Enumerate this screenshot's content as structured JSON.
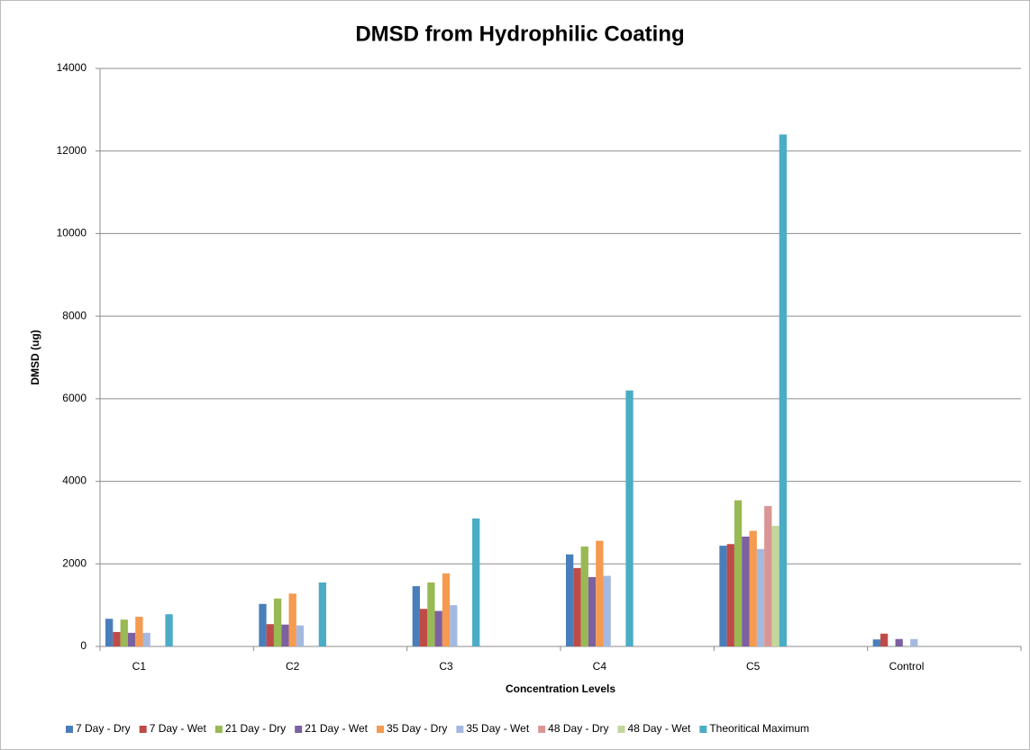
{
  "chart_data": {
    "type": "bar",
    "title": "DMSD from Hydrophilic Coating",
    "x_label": "Concentration Levels",
    "y_label": "DMSD (ug)",
    "categories": [
      "C1",
      "C2",
      "C3",
      "C4",
      "C5",
      "Control"
    ],
    "series": [
      {
        "name": "7 Day - Dry",
        "color": "#4a7ebb",
        "values": [
          670,
          1030,
          1460,
          2230,
          2440,
          170
        ]
      },
      {
        "name": "7 Day - Wet",
        "color": "#be4b48",
        "values": [
          350,
          540,
          910,
          1900,
          2480,
          310
        ]
      },
      {
        "name": "21 Day - Dry",
        "color": "#98b954",
        "values": [
          650,
          1160,
          1550,
          2420,
          3540,
          null
        ]
      },
      {
        "name": "21 Day - Wet",
        "color": "#7d60a0",
        "values": [
          330,
          530,
          860,
          1680,
          2660,
          180
        ]
      },
      {
        "name": "35 Day - Dry",
        "color": "#f59a4e",
        "values": [
          720,
          1280,
          1770,
          2560,
          2800,
          null
        ]
      },
      {
        "name": "35 Day - Wet",
        "color": "#a5b9e0",
        "values": [
          330,
          510,
          1000,
          1710,
          2360,
          180
        ]
      },
      {
        "name": "48 Day - Dry",
        "color": "#d99694",
        "values": [
          null,
          null,
          null,
          null,
          3400,
          null
        ]
      },
      {
        "name": "48 Day - Wet",
        "color": "#c3d69b",
        "values": [
          null,
          null,
          null,
          null,
          2920,
          null
        ]
      },
      {
        "name": "Theoritical Maximum",
        "color": "#4bacc6",
        "values": [
          780,
          1550,
          3100,
          6200,
          12400,
          null
        ]
      }
    ],
    "ylim": [
      0,
      14000
    ],
    "yticks": [
      0,
      2000,
      4000,
      6000,
      8000,
      10000,
      12000,
      14000
    ],
    "grid": true,
    "legend": "bottom"
  }
}
